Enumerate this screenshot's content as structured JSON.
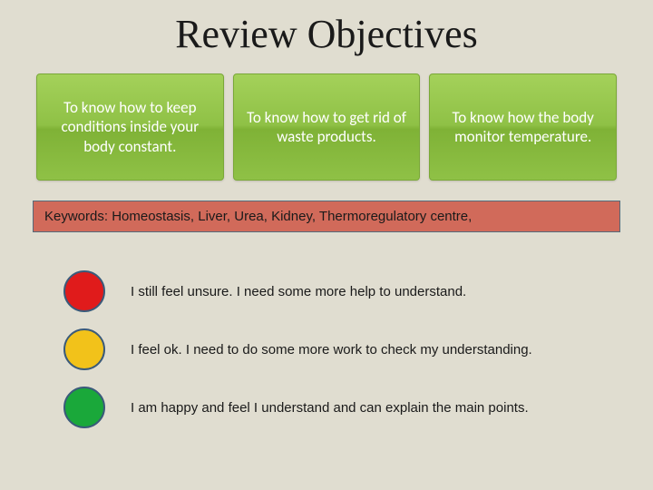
{
  "title": "Review Objectives",
  "objectives": [
    {
      "text": "To know how to keep conditions inside your body constant."
    },
    {
      "text": "To know how to get rid of waste products."
    },
    {
      "text": "To know how the body monitor temperature."
    }
  ],
  "objective_card": {
    "gradient_top": "#a4d15a",
    "gradient_mid1": "#8fc146",
    "gradient_mid2": "#7fb236",
    "border_color": "#7aa838",
    "text_color": "#ffffff",
    "font_size": 17
  },
  "keywords": {
    "text": "Keywords: Homeostasis, Liver, Urea, Kidney, Thermoregulatory centre,",
    "background": "#d16a5a",
    "border_color": "#556a7a",
    "font_size": 15
  },
  "legend": [
    {
      "color": "#e01b1b",
      "text": "I still feel unsure. I need some more help to understand."
    },
    {
      "color": "#f2c21a",
      "text": "I feel ok. I need to do some more work to check my understanding."
    },
    {
      "color": "#1aa83a",
      "text": "I am happy and feel I understand and can explain the main points."
    }
  ],
  "legend_circle": {
    "border_color": "#3a5a7a",
    "size": 46
  },
  "background_color": "#e0ddd0",
  "title_style": {
    "font_size": 44,
    "color": "#1a1a1a"
  }
}
